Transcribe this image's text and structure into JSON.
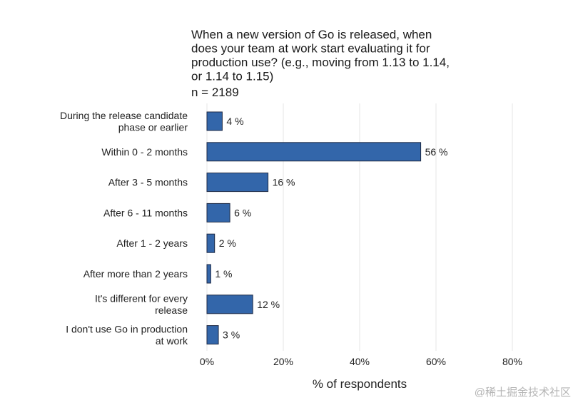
{
  "chart_data": {
    "type": "bar",
    "orientation": "horizontal",
    "title_lines": [
      "When a new version of Go is released, when",
      "does your team at work start evaluating it for",
      "production use? (e.g., moving from 1.13 to 1.14,",
      "or 1.14 to 1.15)"
    ],
    "subtitle": "n = 2189",
    "categories": [
      [
        "During the release candidate",
        "phase or earlier"
      ],
      [
        "Within 0 - 2 months"
      ],
      [
        "After 3 - 5 months"
      ],
      [
        "After 6 - 11 months"
      ],
      [
        "After 1 - 2 years"
      ],
      [
        "After more than 2 years"
      ],
      [
        "It's different for every",
        "release"
      ],
      [
        "I don't use Go in production",
        "at work"
      ]
    ],
    "values": [
      4,
      56,
      16,
      6,
      2,
      1,
      12,
      3
    ],
    "value_labels": [
      "4 %",
      "56 %",
      "16 %",
      "6 %",
      "2 %",
      "1 %",
      "12 %",
      "3 %"
    ],
    "xticks": [
      0,
      20,
      40,
      60,
      80
    ],
    "xtick_labels": [
      "0%",
      "20%",
      "40%",
      "60%",
      "80%"
    ],
    "xlim": [
      0,
      80
    ],
    "xlabel": "% of respondents",
    "ylabel": "",
    "grid": "vertical",
    "bar_color": "#3366aa",
    "bar_edge_color": "#1f2a44",
    "grid_color": "#e6e6e6"
  },
  "watermark": "@稀土掘金技术社区"
}
